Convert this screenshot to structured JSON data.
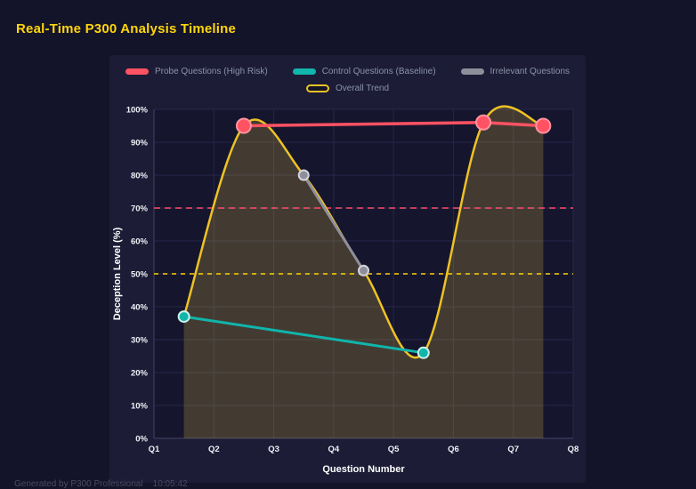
{
  "page": {
    "title": "Real-Time P300 Analysis Timeline",
    "footer": "Generated by P300 Professional    10:05:42"
  },
  "colors": {
    "page_bg": "#13132a",
    "panel_bg": "#1c1c36",
    "plot_bg": "#15152e",
    "grid": "#26264a",
    "axis_line": "#3c3c5c",
    "tick_text": "#eef0f6",
    "title": "#ffd60a",
    "legend_text": "#8b93a7",
    "trend_fill": "rgba(233,196,63,0.22)"
  },
  "chart_data": {
    "type": "line",
    "title": "Real-Time P300 Analysis Timeline",
    "xlabel": "Question Number",
    "ylabel": "Deception Level (%)",
    "xlim": [
      1,
      8
    ],
    "ylim": [
      0,
      100
    ],
    "grid": true,
    "legend_position": "top",
    "x_tick_values": [
      1,
      2,
      3,
      4,
      5,
      6,
      7,
      8
    ],
    "x_tick_labels": [
      "Q1",
      "Q2",
      "Q3",
      "Q4",
      "Q5",
      "Q6",
      "Q7",
      "Q8"
    ],
    "y_tick_values": [
      0,
      10,
      20,
      30,
      40,
      50,
      60,
      70,
      80,
      90,
      100
    ],
    "y_tick_labels": [
      "0%",
      "10%",
      "20%",
      "30%",
      "40%",
      "50%",
      "60%",
      "70%",
      "80%",
      "90%",
      "100%"
    ],
    "series": [
      {
        "name": "Probe Questions (High Risk)",
        "color": "#ff5263",
        "point_stroke": "#ff94a0",
        "x": [
          2.5,
          6.5,
          7.5
        ],
        "values": [
          95,
          96,
          95
        ],
        "width": 3.5,
        "point_radius": 8,
        "smooth": false
      },
      {
        "name": "Control Questions (Baseline)",
        "color": "#10b5ac",
        "point_stroke": "#c9efe9",
        "x": [
          1.5,
          5.5
        ],
        "values": [
          37,
          26
        ],
        "width": 3,
        "point_radius": 6,
        "smooth": false
      },
      {
        "name": "Irrelevant Questions",
        "color": "#8f8f9b",
        "point_stroke": "#d4d4dc",
        "x": [
          3.5,
          4.5
        ],
        "values": [
          80,
          51
        ],
        "width": 3,
        "point_radius": 5.5,
        "smooth": false
      },
      {
        "name": "Overall Trend",
        "color": "#eec224",
        "x": [
          1.5,
          2.5,
          3.5,
          4.5,
          5.5,
          6.5,
          7.5
        ],
        "values": [
          37,
          95,
          80,
          51,
          26,
          96,
          95
        ],
        "width": 2.5,
        "smooth": true,
        "fill": true,
        "points": false,
        "legend_style": "outline"
      }
    ],
    "thresholds": [
      {
        "value": 70,
        "color": "#ff4d6d",
        "dash": "7,5",
        "width": 1.6
      },
      {
        "value": 50,
        "color": "#ffd400",
        "dash": "5,5",
        "width": 1.6
      }
    ]
  }
}
